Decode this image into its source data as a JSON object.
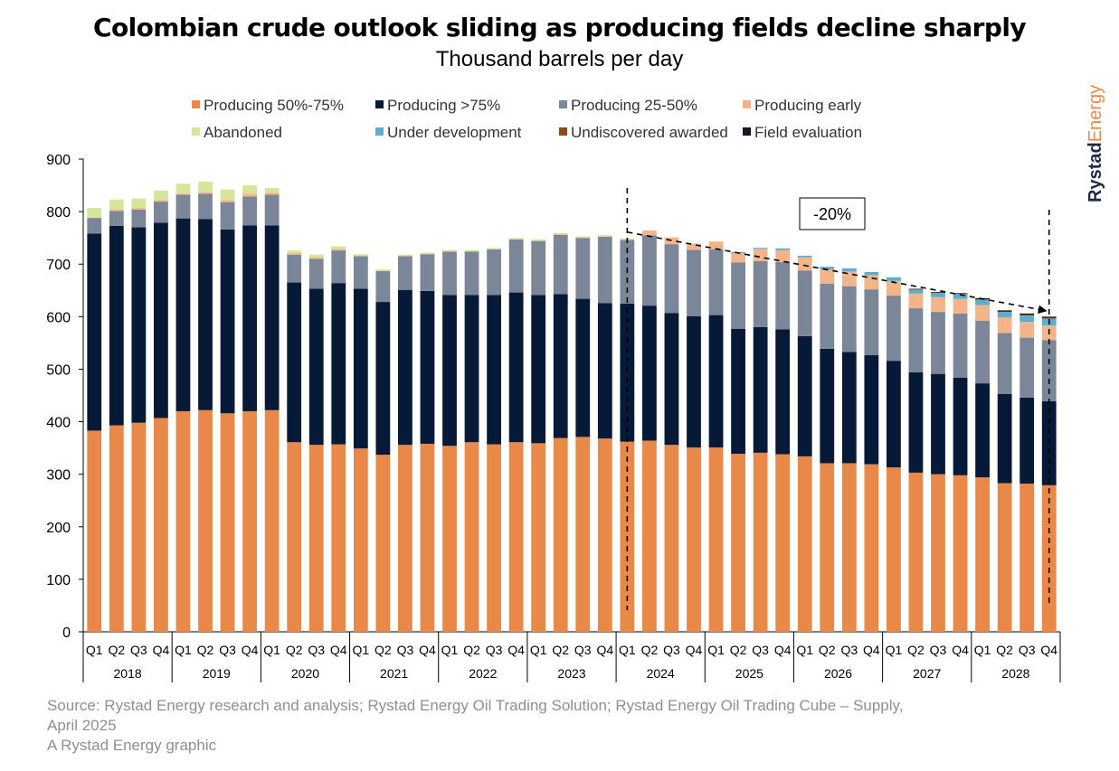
{
  "title": "Colombian crude outlook sliding as producing fields decline sharply",
  "subtitle": "Thousand barrels per day",
  "brand": {
    "part1": "Rystad",
    "part2": "Energy"
  },
  "source": {
    "line1": "Source: Rystad Energy research and analysis; Rystad Energy Oil Trading Solution; Rystad Energy Oil Trading Cube – Supply,",
    "line2": "April 2025",
    "line3": "A Rystad Energy graphic"
  },
  "annotation": {
    "label": "-20%"
  },
  "chart_data": {
    "type": "bar",
    "stacked": true,
    "ylim": [
      0,
      900
    ],
    "yticks": [
      0,
      100,
      200,
      300,
      400,
      500,
      600,
      700,
      800,
      900
    ],
    "grid": false,
    "legend_position": "top",
    "quarters": [
      "Q1",
      "Q2",
      "Q3",
      "Q4",
      "Q1",
      "Q2",
      "Q3",
      "Q4",
      "Q1",
      "Q2",
      "Q3",
      "Q4",
      "Q1",
      "Q2",
      "Q3",
      "Q4",
      "Q1",
      "Q2",
      "Q3",
      "Q4",
      "Q1",
      "Q2",
      "Q3",
      "Q4",
      "Q1",
      "Q2",
      "Q3",
      "Q4",
      "Q1",
      "Q2",
      "Q3",
      "Q4",
      "Q1",
      "Q2",
      "Q3",
      "Q4",
      "Q1",
      "Q2",
      "Q3",
      "Q4",
      "Q1",
      "Q2",
      "Q3",
      "Q4"
    ],
    "years": [
      "2018",
      "2019",
      "2020",
      "2021",
      "2022",
      "2023",
      "2024",
      "2025",
      "2026",
      "2027",
      "2028"
    ],
    "legend": [
      "Producing 50%-75%",
      "Producing >75%",
      "Producing 25-50%",
      "Producing early",
      "Abandoned",
      "Under development",
      "Undiscovered awarded",
      "Field evaluation"
    ],
    "series": [
      {
        "name": "Producing 50%-75%",
        "color": "#e8894a",
        "values": [
          383,
          393,
          398,
          407,
          420,
          422,
          416,
          420,
          422,
          361,
          356,
          357,
          349,
          337,
          356,
          358,
          354,
          361,
          357,
          361,
          359,
          369,
          371,
          368,
          362,
          364,
          356,
          351,
          351,
          339,
          341,
          338,
          334,
          321,
          321,
          319,
          313,
          303,
          300,
          298,
          294,
          283,
          282,
          279
        ]
      },
      {
        "name": "Producing >75%",
        "color": "#061a38",
        "values": [
          375,
          380,
          372,
          372,
          367,
          364,
          350,
          354,
          352,
          304,
          297,
          307,
          304,
          291,
          295,
          291,
          287,
          280,
          284,
          285,
          282,
          274,
          263,
          258,
          263,
          257,
          251,
          250,
          252,
          238,
          239,
          238,
          229,
          218,
          212,
          208,
          203,
          191,
          191,
          186,
          179,
          170,
          164,
          160
        ]
      },
      {
        "name": "Producing 25-50%",
        "color": "#7b8698",
        "values": [
          30,
          28,
          34,
          40,
          45,
          48,
          52,
          55,
          58,
          53,
          57,
          62,
          62,
          59,
          64,
          70,
          83,
          83,
          87,
          101,
          103,
          113,
          116,
          126,
          121,
          134,
          131,
          126,
          125,
          126,
          126,
          128,
          125,
          124,
          125,
          125,
          124,
          122,
          118,
          122,
          119,
          116,
          114,
          116
        ]
      },
      {
        "name": "Producing early",
        "color": "#f3b48a",
        "values": [
          0,
          3,
          3,
          3,
          2,
          3,
          4,
          5,
          4,
          3,
          3,
          3,
          0,
          0,
          0,
          0,
          0,
          0,
          0,
          0,
          0,
          0,
          0,
          0,
          0,
          9,
          13,
          12,
          15,
          18,
          23,
          23,
          25,
          27,
          28,
          27,
          28,
          28,
          28,
          28,
          30,
          30,
          30,
          28
        ]
      },
      {
        "name": "Abandoned",
        "color": "#d6e59a",
        "values": [
          19,
          19,
          18,
          18,
          19,
          20,
          20,
          16,
          9,
          5,
          5,
          5,
          4,
          3,
          3,
          3,
          3,
          3,
          3,
          3,
          3,
          3,
          3,
          3,
          3,
          0,
          0,
          0,
          0,
          0,
          0,
          0,
          0,
          0,
          0,
          0,
          0,
          0,
          0,
          0,
          0,
          0,
          0,
          0
        ]
      },
      {
        "name": "Under development",
        "color": "#5aaed1",
        "values": [
          0,
          0,
          0,
          0,
          0,
          0,
          0,
          0,
          0,
          0,
          0,
          0,
          0,
          0,
          0,
          0,
          0,
          0,
          0,
          0,
          0,
          0,
          0,
          0,
          0,
          0,
          0,
          0,
          0,
          2,
          2,
          3,
          3,
          5,
          6,
          6,
          7,
          7,
          8,
          9,
          10,
          10,
          12,
          13
        ]
      },
      {
        "name": "Undiscovered awarded",
        "color": "#8b4b1c",
        "values": [
          0,
          0,
          0,
          0,
          0,
          0,
          0,
          0,
          0,
          0,
          0,
          0,
          0,
          0,
          0,
          0,
          0,
          0,
          0,
          0,
          0,
          0,
          0,
          0,
          0,
          0,
          0,
          0,
          0,
          0,
          0,
          0,
          0,
          0,
          0,
          0,
          0,
          1,
          1,
          1,
          1,
          1,
          2,
          2
        ]
      },
      {
        "name": "Field evaluation",
        "color": "#111826",
        "values": [
          0,
          0,
          0,
          0,
          0,
          0,
          0,
          0,
          0,
          0,
          0,
          0,
          0,
          0,
          0,
          0,
          0,
          0,
          0,
          0,
          0,
          0,
          0,
          0,
          0,
          0,
          0,
          0,
          0,
          0,
          0,
          0,
          0,
          0,
          0,
          0,
          0,
          1,
          1,
          1,
          2,
          2,
          2,
          2
        ]
      }
    ]
  }
}
